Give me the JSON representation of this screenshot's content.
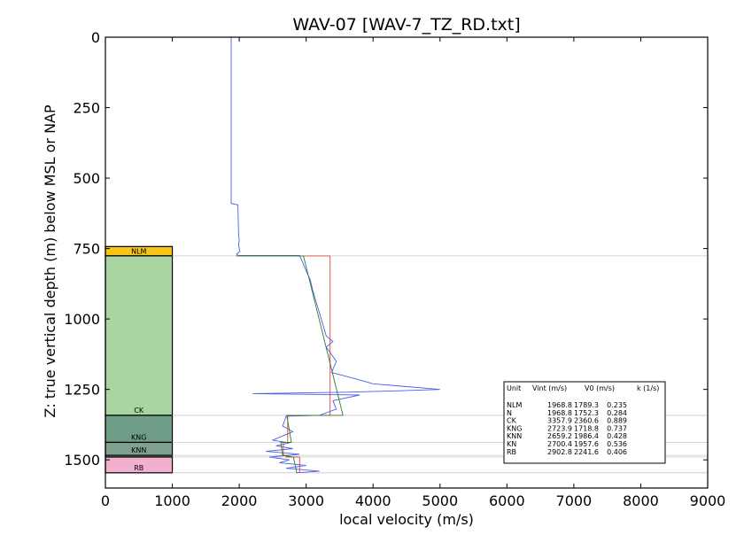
{
  "chart_data": {
    "type": "line",
    "title": "WAV-07 [WAV-7_TZ_RD.txt]",
    "xlabel": "local velocity (m/s)",
    "ylabel": "Z: true vertical depth (m) below MSL or NAP",
    "xlim": [
      0,
      9000
    ],
    "ylim": [
      1600,
      0
    ],
    "x_ticks": [
      0,
      1000,
      2000,
      3000,
      4000,
      5000,
      6000,
      7000,
      8000,
      9000
    ],
    "y_ticks": [
      0,
      250,
      500,
      750,
      1000,
      1250,
      1500
    ],
    "grid": false,
    "units": [
      {
        "name": "NLM",
        "top": 743,
        "base": 776,
        "color": "#f5c518",
        "show_label": true
      },
      {
        "name": "N",
        "top": 776,
        "base": 776,
        "color": "#a9d5a0",
        "show_label": false
      },
      {
        "name": "CK",
        "top": 776,
        "base": 1342,
        "color": "#a9d5a0",
        "show_label": true
      },
      {
        "name": "KNG",
        "top": 1342,
        "base": 1438,
        "color": "#6f9e88",
        "show_label": true
      },
      {
        "name": "KNN",
        "top": 1438,
        "base": 1484,
        "color": "#80a090",
        "show_label": true
      },
      {
        "name": "KN",
        "top": 1484,
        "base": 1490,
        "color": "#80a090",
        "show_label": false
      },
      {
        "name": "RB",
        "top": 1490,
        "base": 1546,
        "color": "#f2b0cf",
        "show_label": true
      }
    ],
    "series": [
      {
        "color": "#4a5fe8",
        "points": [
          [
            1880,
            0
          ],
          [
            1880,
            590
          ],
          [
            1980,
            595
          ],
          [
            1985,
            650
          ],
          [
            1990,
            700
          ],
          [
            2000,
            720
          ],
          [
            1990,
            740
          ],
          [
            2010,
            760
          ],
          [
            1960,
            770
          ],
          [
            1990,
            775
          ],
          [
            2900,
            775
          ],
          [
            2950,
            800
          ],
          [
            3000,
            830
          ],
          [
            3060,
            860
          ],
          [
            3100,
            900
          ],
          [
            3150,
            940
          ],
          [
            3200,
            980
          ],
          [
            3250,
            1020
          ],
          [
            3300,
            1060
          ],
          [
            3400,
            1080
          ],
          [
            3300,
            1100
          ],
          [
            3450,
            1150
          ],
          [
            3380,
            1190
          ],
          [
            3700,
            1210
          ],
          [
            4000,
            1230
          ],
          [
            4500,
            1240
          ],
          [
            5000,
            1250
          ],
          [
            4400,
            1255
          ],
          [
            3600,
            1260
          ],
          [
            2200,
            1265
          ],
          [
            3800,
            1270
          ],
          [
            3400,
            1290
          ],
          [
            3450,
            1320
          ],
          [
            3200,
            1342
          ],
          [
            2700,
            1345
          ],
          [
            2650,
            1380
          ],
          [
            2800,
            1400
          ],
          [
            2500,
            1430
          ],
          [
            2750,
            1440
          ],
          [
            2550,
            1450
          ],
          [
            2800,
            1460
          ],
          [
            2400,
            1470
          ],
          [
            2900,
            1480
          ],
          [
            2450,
            1490
          ],
          [
            2750,
            1500
          ],
          [
            2600,
            1510
          ],
          [
            3000,
            1520
          ],
          [
            2700,
            1530
          ],
          [
            3200,
            1540
          ],
          [
            2850,
            1546
          ]
        ]
      },
      {
        "color": "#d94040",
        "points": [
          [
            2000,
            776
          ],
          [
            3358,
            776
          ],
          [
            3358,
            1342
          ],
          [
            2724,
            1342
          ],
          [
            2724,
            1438
          ],
          [
            2659,
            1438
          ],
          [
            2659,
            1484
          ],
          [
            2700,
            1484
          ],
          [
            2700,
            1490
          ],
          [
            2903,
            1490
          ],
          [
            2903,
            1546
          ]
        ]
      },
      {
        "color": "#2a7d2a",
        "points": [
          [
            1950,
            776
          ],
          [
            2960,
            776
          ],
          [
            3550,
            1342
          ],
          [
            2710,
            1342
          ],
          [
            2780,
            1438
          ],
          [
            2620,
            1438
          ],
          [
            2650,
            1484
          ],
          [
            2810,
            1490
          ],
          [
            2860,
            1546
          ]
        ]
      }
    ],
    "table": {
      "header": [
        "Unit",
        "Vint (m/s)",
        "V0 (m/s)",
        "k (1/s)"
      ],
      "rows": [
        [
          "NLM",
          "1968.8",
          "1789.3",
          "0.235"
        ],
        [
          "N",
          "1968.8",
          "1752.3",
          "0.284"
        ],
        [
          "CK",
          "3357.9",
          "2360.6",
          "0.889"
        ],
        [
          "KNG",
          "2723.9",
          "1718.8",
          "0.737"
        ],
        [
          "KNN",
          "2659.2",
          "1986.4",
          "0.428"
        ],
        [
          "KN",
          "2700.4",
          "1957.6",
          "0.536"
        ],
        [
          "RB",
          "2902.8",
          "2241.6",
          "0.406"
        ]
      ]
    }
  }
}
